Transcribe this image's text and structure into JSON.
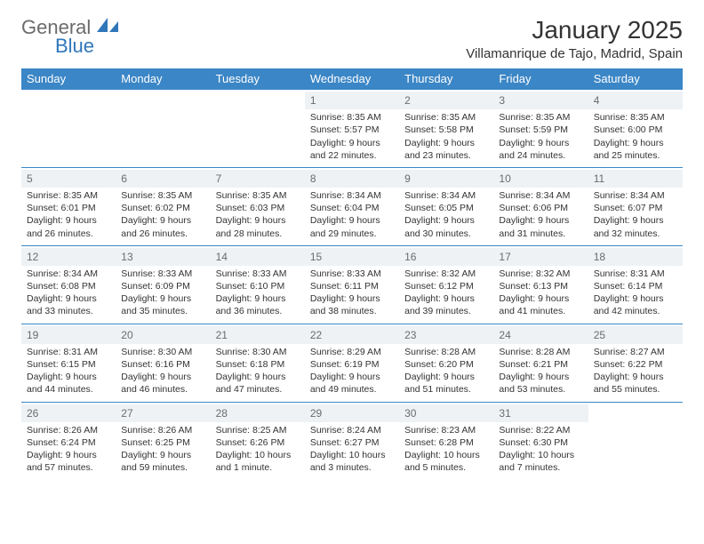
{
  "logo": {
    "word1": "General",
    "word2": "Blue"
  },
  "title": "January 2025",
  "location": "Villamanrique de Tajo, Madrid, Spain",
  "colors": {
    "header_bg": "#3b86c6",
    "row_separator": "#3b86c6",
    "daynum_bg": "#eef2f5",
    "text": "#333333",
    "logo_gray": "#6b6b6b",
    "logo_blue": "#2f77ba"
  },
  "days": [
    "Sunday",
    "Monday",
    "Tuesday",
    "Wednesday",
    "Thursday",
    "Friday",
    "Saturday"
  ],
  "weeks": [
    [
      null,
      null,
      null,
      {
        "n": "1",
        "sunrise": "8:35 AM",
        "sunset": "5:57 PM",
        "dl1": "Daylight: 9 hours",
        "dl2": "and 22 minutes."
      },
      {
        "n": "2",
        "sunrise": "8:35 AM",
        "sunset": "5:58 PM",
        "dl1": "Daylight: 9 hours",
        "dl2": "and 23 minutes."
      },
      {
        "n": "3",
        "sunrise": "8:35 AM",
        "sunset": "5:59 PM",
        "dl1": "Daylight: 9 hours",
        "dl2": "and 24 minutes."
      },
      {
        "n": "4",
        "sunrise": "8:35 AM",
        "sunset": "6:00 PM",
        "dl1": "Daylight: 9 hours",
        "dl2": "and 25 minutes."
      }
    ],
    [
      {
        "n": "5",
        "sunrise": "8:35 AM",
        "sunset": "6:01 PM",
        "dl1": "Daylight: 9 hours",
        "dl2": "and 26 minutes."
      },
      {
        "n": "6",
        "sunrise": "8:35 AM",
        "sunset": "6:02 PM",
        "dl1": "Daylight: 9 hours",
        "dl2": "and 26 minutes."
      },
      {
        "n": "7",
        "sunrise": "8:35 AM",
        "sunset": "6:03 PM",
        "dl1": "Daylight: 9 hours",
        "dl2": "and 28 minutes."
      },
      {
        "n": "8",
        "sunrise": "8:34 AM",
        "sunset": "6:04 PM",
        "dl1": "Daylight: 9 hours",
        "dl2": "and 29 minutes."
      },
      {
        "n": "9",
        "sunrise": "8:34 AM",
        "sunset": "6:05 PM",
        "dl1": "Daylight: 9 hours",
        "dl2": "and 30 minutes."
      },
      {
        "n": "10",
        "sunrise": "8:34 AM",
        "sunset": "6:06 PM",
        "dl1": "Daylight: 9 hours",
        "dl2": "and 31 minutes."
      },
      {
        "n": "11",
        "sunrise": "8:34 AM",
        "sunset": "6:07 PM",
        "dl1": "Daylight: 9 hours",
        "dl2": "and 32 minutes."
      }
    ],
    [
      {
        "n": "12",
        "sunrise": "8:34 AM",
        "sunset": "6:08 PM",
        "dl1": "Daylight: 9 hours",
        "dl2": "and 33 minutes."
      },
      {
        "n": "13",
        "sunrise": "8:33 AM",
        "sunset": "6:09 PM",
        "dl1": "Daylight: 9 hours",
        "dl2": "and 35 minutes."
      },
      {
        "n": "14",
        "sunrise": "8:33 AM",
        "sunset": "6:10 PM",
        "dl1": "Daylight: 9 hours",
        "dl2": "and 36 minutes."
      },
      {
        "n": "15",
        "sunrise": "8:33 AM",
        "sunset": "6:11 PM",
        "dl1": "Daylight: 9 hours",
        "dl2": "and 38 minutes."
      },
      {
        "n": "16",
        "sunrise": "8:32 AM",
        "sunset": "6:12 PM",
        "dl1": "Daylight: 9 hours",
        "dl2": "and 39 minutes."
      },
      {
        "n": "17",
        "sunrise": "8:32 AM",
        "sunset": "6:13 PM",
        "dl1": "Daylight: 9 hours",
        "dl2": "and 41 minutes."
      },
      {
        "n": "18",
        "sunrise": "8:31 AM",
        "sunset": "6:14 PM",
        "dl1": "Daylight: 9 hours",
        "dl2": "and 42 minutes."
      }
    ],
    [
      {
        "n": "19",
        "sunrise": "8:31 AM",
        "sunset": "6:15 PM",
        "dl1": "Daylight: 9 hours",
        "dl2": "and 44 minutes."
      },
      {
        "n": "20",
        "sunrise": "8:30 AM",
        "sunset": "6:16 PM",
        "dl1": "Daylight: 9 hours",
        "dl2": "and 46 minutes."
      },
      {
        "n": "21",
        "sunrise": "8:30 AM",
        "sunset": "6:18 PM",
        "dl1": "Daylight: 9 hours",
        "dl2": "and 47 minutes."
      },
      {
        "n": "22",
        "sunrise": "8:29 AM",
        "sunset": "6:19 PM",
        "dl1": "Daylight: 9 hours",
        "dl2": "and 49 minutes."
      },
      {
        "n": "23",
        "sunrise": "8:28 AM",
        "sunset": "6:20 PM",
        "dl1": "Daylight: 9 hours",
        "dl2": "and 51 minutes."
      },
      {
        "n": "24",
        "sunrise": "8:28 AM",
        "sunset": "6:21 PM",
        "dl1": "Daylight: 9 hours",
        "dl2": "and 53 minutes."
      },
      {
        "n": "25",
        "sunrise": "8:27 AM",
        "sunset": "6:22 PM",
        "dl1": "Daylight: 9 hours",
        "dl2": "and 55 minutes."
      }
    ],
    [
      {
        "n": "26",
        "sunrise": "8:26 AM",
        "sunset": "6:24 PM",
        "dl1": "Daylight: 9 hours",
        "dl2": "and 57 minutes."
      },
      {
        "n": "27",
        "sunrise": "8:26 AM",
        "sunset": "6:25 PM",
        "dl1": "Daylight: 9 hours",
        "dl2": "and 59 minutes."
      },
      {
        "n": "28",
        "sunrise": "8:25 AM",
        "sunset": "6:26 PM",
        "dl1": "Daylight: 10 hours",
        "dl2": "and 1 minute."
      },
      {
        "n": "29",
        "sunrise": "8:24 AM",
        "sunset": "6:27 PM",
        "dl1": "Daylight: 10 hours",
        "dl2": "and 3 minutes."
      },
      {
        "n": "30",
        "sunrise": "8:23 AM",
        "sunset": "6:28 PM",
        "dl1": "Daylight: 10 hours",
        "dl2": "and 5 minutes."
      },
      {
        "n": "31",
        "sunrise": "8:22 AM",
        "sunset": "6:30 PM",
        "dl1": "Daylight: 10 hours",
        "dl2": "and 7 minutes."
      },
      null
    ]
  ],
  "labels": {
    "sunrise": "Sunrise: ",
    "sunset": "Sunset: "
  }
}
